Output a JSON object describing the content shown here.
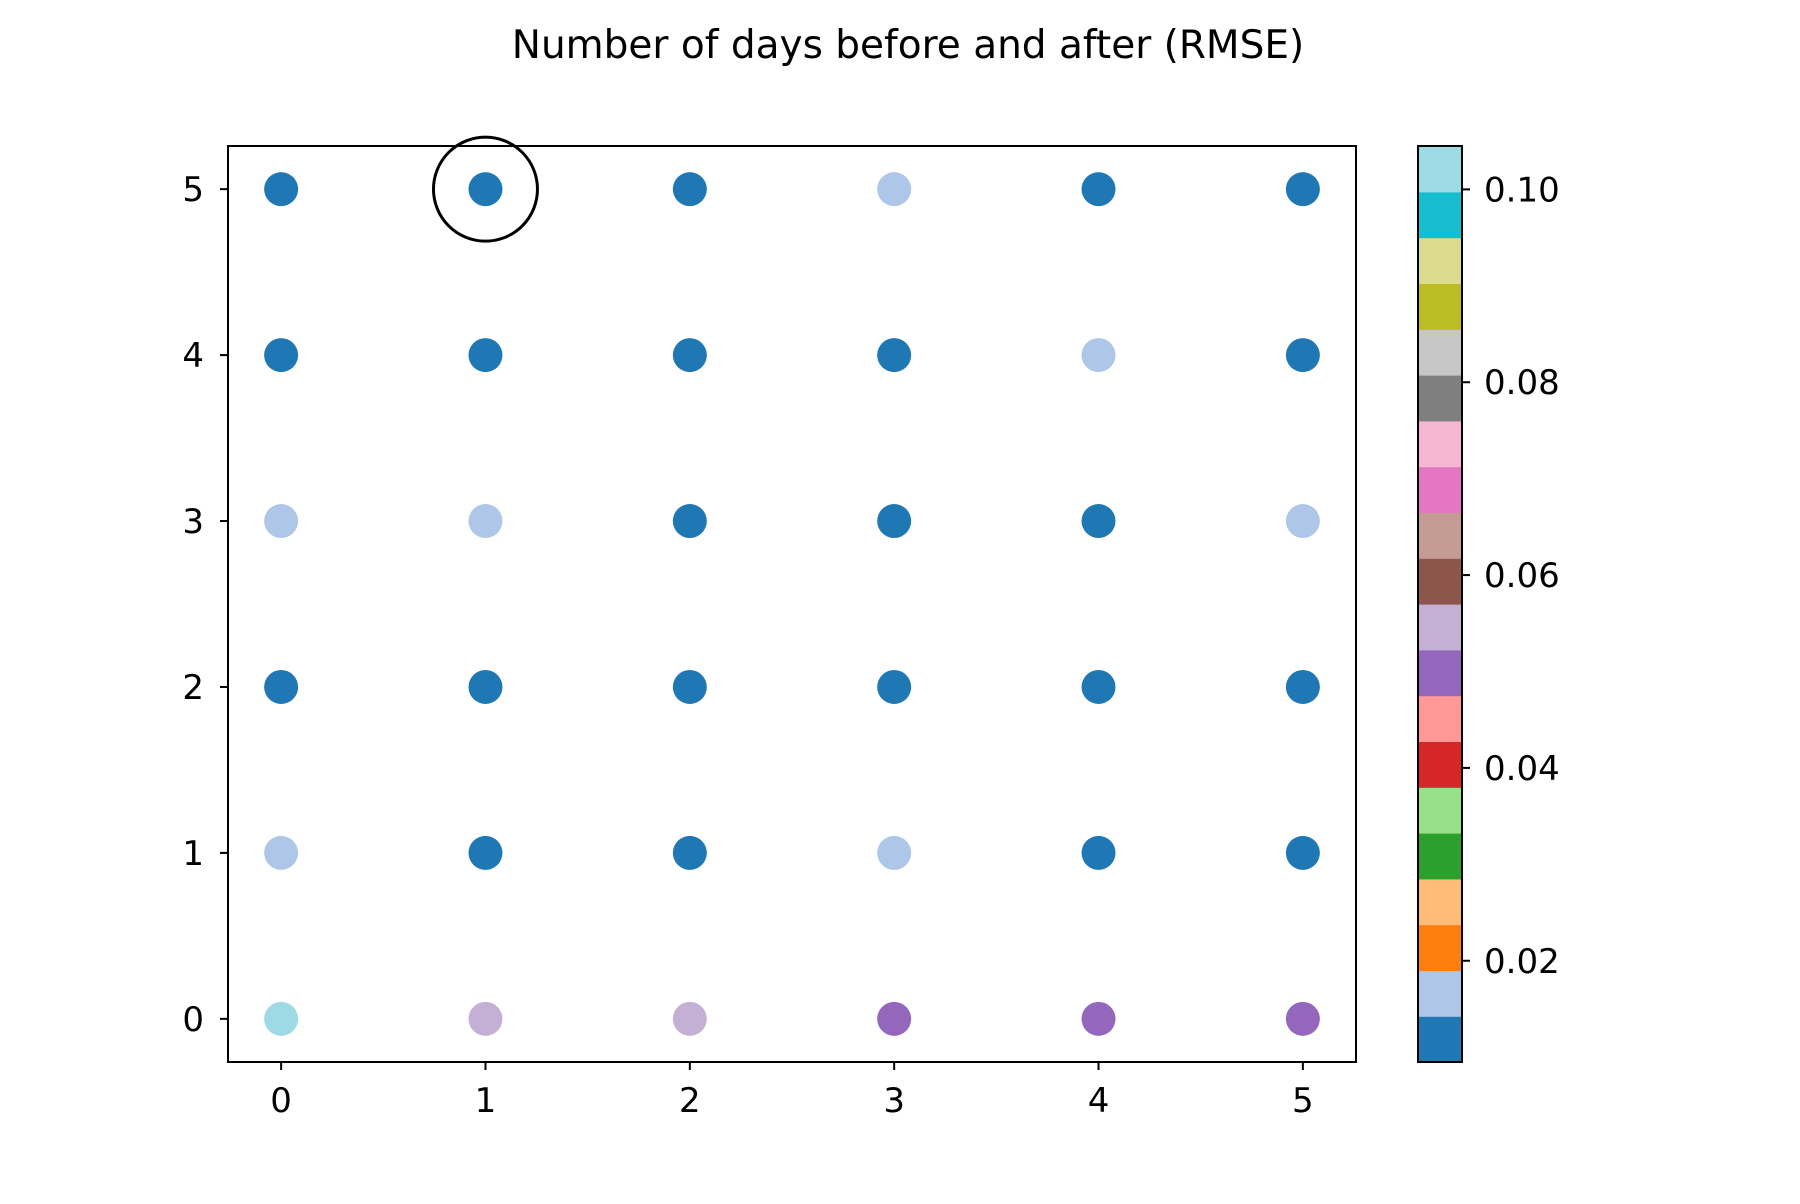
{
  "chart_data": {
    "type": "scatter",
    "title": "Number of days before and after (RMSE)",
    "xlabel": "",
    "ylabel": "",
    "xlim": [
      -0.26,
      5.26
    ],
    "ylim": [
      -0.26,
      5.26
    ],
    "x_ticks": [
      0,
      1,
      2,
      3,
      4,
      5
    ],
    "y_ticks": [
      0,
      1,
      2,
      3,
      4,
      5
    ],
    "grid": false,
    "legend": "none",
    "colormap": "tab20",
    "colorbar": {
      "range": [
        0.0095,
        0.1045
      ],
      "ticks": [
        0.02,
        0.04,
        0.06,
        0.08,
        0.1
      ],
      "tick_labels": [
        "0.02",
        "0.04",
        "0.06",
        "0.08",
        "0.10"
      ],
      "colors": [
        "#1f77b4",
        "#aec7e8",
        "#ff7f0e",
        "#ffbb78",
        "#2ca02c",
        "#98df8a",
        "#d62728",
        "#ff9896",
        "#9467bd",
        "#c5b0d5",
        "#8c564b",
        "#c49c94",
        "#e377c2",
        "#f7b6d2",
        "#7f7f7f",
        "#c7c7c7",
        "#bcbd22",
        "#dbdb8d",
        "#17becf",
        "#9edae5"
      ]
    },
    "highlight": {
      "x": 1,
      "y": 5
    },
    "points": [
      {
        "x": 0,
        "y": 0,
        "value": 0.102
      },
      {
        "x": 1,
        "y": 0,
        "value": 0.056
      },
      {
        "x": 2,
        "y": 0,
        "value": 0.056
      },
      {
        "x": 3,
        "y": 0,
        "value": 0.051
      },
      {
        "x": 4,
        "y": 0,
        "value": 0.051
      },
      {
        "x": 5,
        "y": 0,
        "value": 0.051
      },
      {
        "x": 0,
        "y": 1,
        "value": 0.017
      },
      {
        "x": 1,
        "y": 1,
        "value": 0.012
      },
      {
        "x": 2,
        "y": 1,
        "value": 0.012
      },
      {
        "x": 3,
        "y": 1,
        "value": 0.017
      },
      {
        "x": 4,
        "y": 1,
        "value": 0.012
      },
      {
        "x": 5,
        "y": 1,
        "value": 0.012
      },
      {
        "x": 0,
        "y": 2,
        "value": 0.012
      },
      {
        "x": 1,
        "y": 2,
        "value": 0.012
      },
      {
        "x": 2,
        "y": 2,
        "value": 0.012
      },
      {
        "x": 3,
        "y": 2,
        "value": 0.012
      },
      {
        "x": 4,
        "y": 2,
        "value": 0.012
      },
      {
        "x": 5,
        "y": 2,
        "value": 0.012
      },
      {
        "x": 0,
        "y": 3,
        "value": 0.017
      },
      {
        "x": 1,
        "y": 3,
        "value": 0.017
      },
      {
        "x": 2,
        "y": 3,
        "value": 0.012
      },
      {
        "x": 3,
        "y": 3,
        "value": 0.012
      },
      {
        "x": 4,
        "y": 3,
        "value": 0.012
      },
      {
        "x": 5,
        "y": 3,
        "value": 0.017
      },
      {
        "x": 0,
        "y": 4,
        "value": 0.012
      },
      {
        "x": 1,
        "y": 4,
        "value": 0.012
      },
      {
        "x": 2,
        "y": 4,
        "value": 0.012
      },
      {
        "x": 3,
        "y": 4,
        "value": 0.012
      },
      {
        "x": 4,
        "y": 4,
        "value": 0.017
      },
      {
        "x": 5,
        "y": 4,
        "value": 0.012
      },
      {
        "x": 0,
        "y": 5,
        "value": 0.012
      },
      {
        "x": 1,
        "y": 5,
        "value": 0.012
      },
      {
        "x": 2,
        "y": 5,
        "value": 0.012
      },
      {
        "x": 3,
        "y": 5,
        "value": 0.017
      },
      {
        "x": 4,
        "y": 5,
        "value": 0.012
      },
      {
        "x": 5,
        "y": 5,
        "value": 0.012
      }
    ]
  }
}
